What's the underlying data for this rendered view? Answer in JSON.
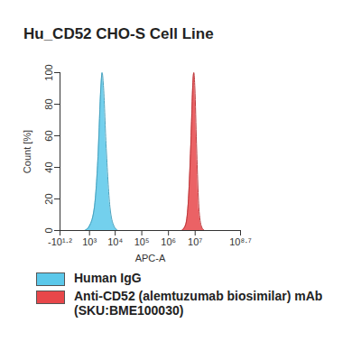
{
  "chart_data": {
    "type": "histogram_overlay",
    "title": "Hu_CD52 CHO-S Cell Line",
    "x_label": "APC-A",
    "y_label": "Count [%]",
    "log": "x",
    "xlim": [
      -15.848931924611133,
      501187233.6272715
    ],
    "xticks": [
      {
        "value": -15.848931924611133,
        "label": "-10¹·²"
      },
      {
        "value": 1000,
        "label": "10³"
      },
      {
        "value": 10000,
        "label": "10⁴"
      },
      {
        "value": 100000,
        "label": "10⁵"
      },
      {
        "value": 1000000,
        "label": "10⁶"
      },
      {
        "value": 10000000,
        "label": "10⁷"
      },
      {
        "value": 501187233.6272715,
        "label": "10⁸·⁷"
      }
    ],
    "ylim": [
      0,
      100
    ],
    "yticks": [
      0,
      20,
      40,
      60,
      80,
      100
    ],
    "legend": "bottom",
    "series": [
      {
        "name": "Human IgG",
        "color": "#5bc8ea",
        "x": [
          631,
          1000,
          1585,
          2239,
          2818,
          3162,
          3548,
          4467,
          6310,
          8913,
          12589
        ],
        "values": [
          0,
          3,
          15,
          50,
          90,
          100,
          92,
          55,
          15,
          3,
          0
        ]
      },
      {
        "name": "Anti-CD52 (alemtuzumab biosimilar) mAb (SKU:BME100030)",
        "color": "#e8474a",
        "x": [
          3162278,
          4466836,
          5623413,
          7079458,
          8317638,
          8912509,
          9772372,
          11220185,
          14125375,
          17782794,
          22387211
        ],
        "values": [
          0,
          4,
          20,
          60,
          95,
          100,
          90,
          55,
          12,
          2,
          0
        ]
      }
    ]
  }
}
